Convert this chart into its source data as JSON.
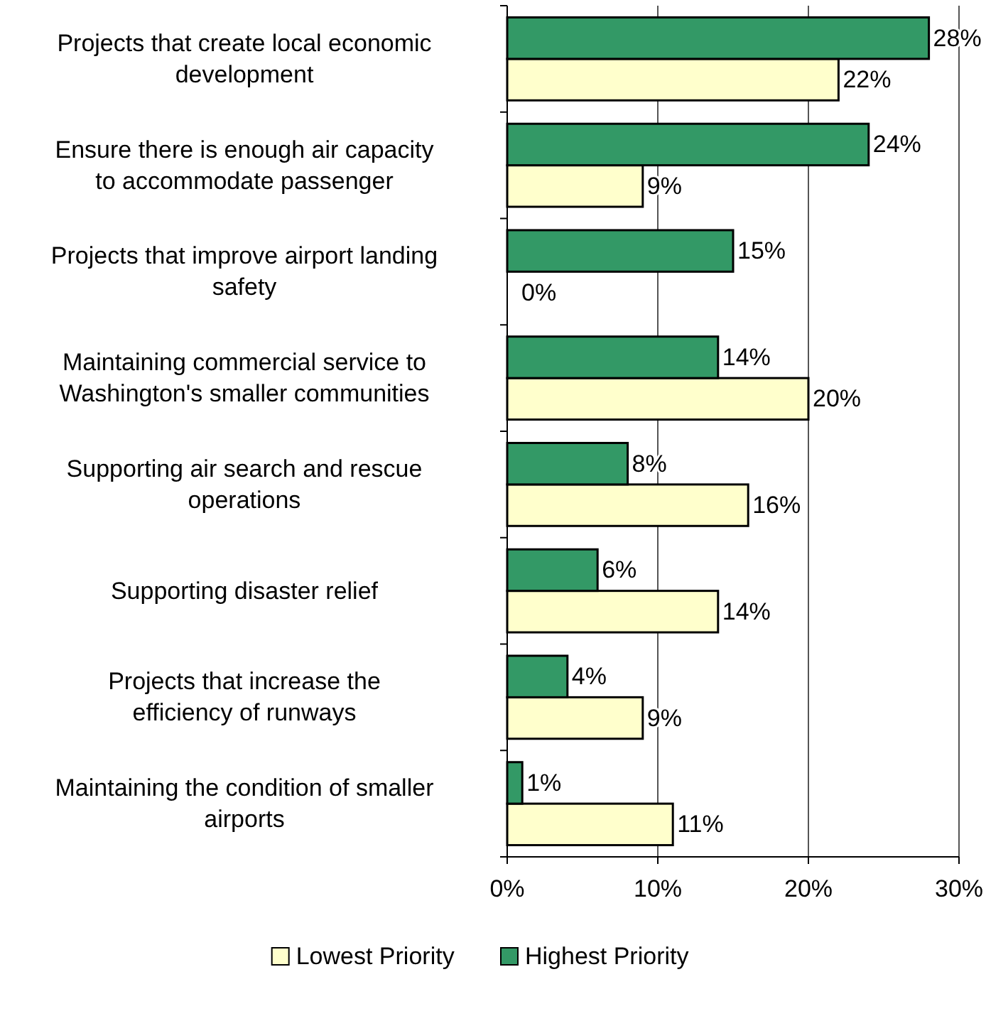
{
  "chart_data": {
    "type": "bar",
    "orientation": "horizontal",
    "categories": [
      "Projects that create local economic\ndevelopment",
      "Ensure there is enough air capacity\nto accommodate passenger",
      "Projects that improve airport landing\nsafety",
      "Maintaining commercial service to\nWashington's smaller communities",
      "Supporting air search and rescue\noperations",
      "Supporting disaster relief",
      "Projects that increase the\nefficiency of runways",
      "Maintaining the condition of smaller\nairports"
    ],
    "series": [
      {
        "name": "Lowest Priority",
        "color": "#ffffcc",
        "values": [
          22,
          9,
          0,
          20,
          16,
          14,
          9,
          11
        ],
        "value_labels": [
          "22%",
          "9%",
          "0%",
          "20%",
          "16%",
          "14%",
          "9%",
          "11%"
        ]
      },
      {
        "name": "Highest Priority",
        "color": "#339966",
        "values": [
          28,
          24,
          15,
          14,
          8,
          6,
          4,
          1
        ],
        "value_labels": [
          "28%",
          "24%",
          "15%",
          "14%",
          "8%",
          "6%",
          "4%",
          "1%"
        ]
      }
    ],
    "xlim": [
      0,
      30
    ],
    "xticks": [
      {
        "value": 0,
        "label": "0%"
      },
      {
        "value": 10,
        "label": "10%"
      },
      {
        "value": 20,
        "label": "20%"
      },
      {
        "value": 30,
        "label": "30%"
      }
    ],
    "grid": "x",
    "legend": "bottom"
  }
}
